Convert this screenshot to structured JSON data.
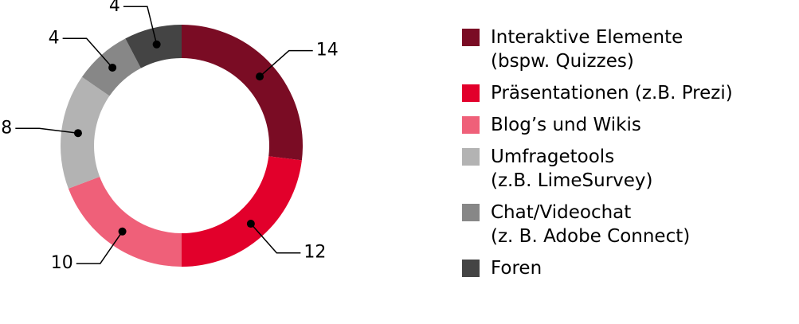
{
  "chart_data": {
    "type": "donut",
    "categories": [
      "Interaktive Elemente\n(bspw. Quizzes)",
      "Präsentationen (z.B. Prezi)",
      "Blog’s und Wikis",
      "Umfragetools\n(z.B. LimeSurvey)",
      "Chat/Videochat\n(z. B. Adobe Connect)",
      "Foren"
    ],
    "values": [
      14,
      12,
      10,
      8,
      4,
      4
    ],
    "colors": [
      "#7a0c24",
      "#e2002b",
      "#ef6079",
      "#b3b3b3",
      "#878787",
      "#444444"
    ],
    "legend": "right"
  }
}
